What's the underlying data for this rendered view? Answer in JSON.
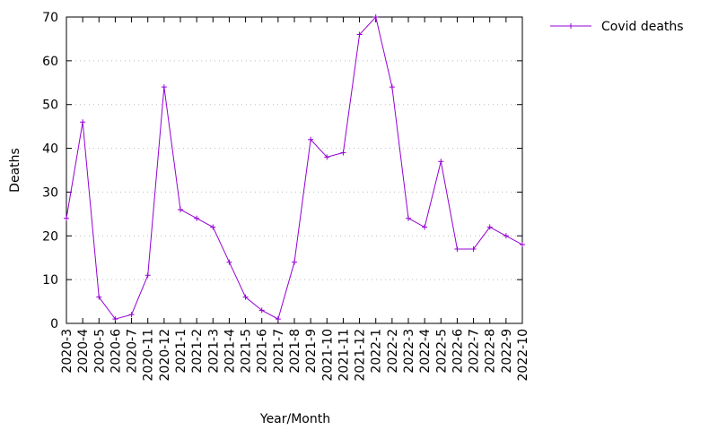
{
  "chart_data": {
    "type": "line",
    "title": "",
    "xlabel": "Year/Month",
    "ylabel": "Deaths",
    "ylim": [
      0,
      70
    ],
    "yticks": [
      0,
      10,
      20,
      30,
      40,
      50,
      60,
      70
    ],
    "grid": "horizontal-dotted",
    "legend_position": "outside-top-right",
    "categories": [
      "2020-3",
      "2020-4",
      "2020-5",
      "2020-6",
      "2020-7",
      "2020-11",
      "2020-12",
      "2021-1",
      "2021-2",
      "2021-3",
      "2021-4",
      "2021-5",
      "2021-6",
      "2021-7",
      "2021-8",
      "2021-9",
      "2021-10",
      "2021-11",
      "2021-12",
      "2022-1",
      "2022-2",
      "2022-3",
      "2022-4",
      "2022-5",
      "2022-6",
      "2022-7",
      "2022-8",
      "2022-9",
      "2022-10"
    ],
    "series": [
      {
        "name": "Covid deaths",
        "color": "#9400d3",
        "marker": "plus",
        "values": [
          24,
          46,
          6,
          1,
          2,
          11,
          54,
          26,
          24,
          22,
          14,
          6,
          3,
          1,
          14,
          42,
          38,
          39,
          66,
          70,
          54,
          24,
          22,
          37,
          17,
          17,
          22,
          20,
          18
        ]
      }
    ]
  }
}
